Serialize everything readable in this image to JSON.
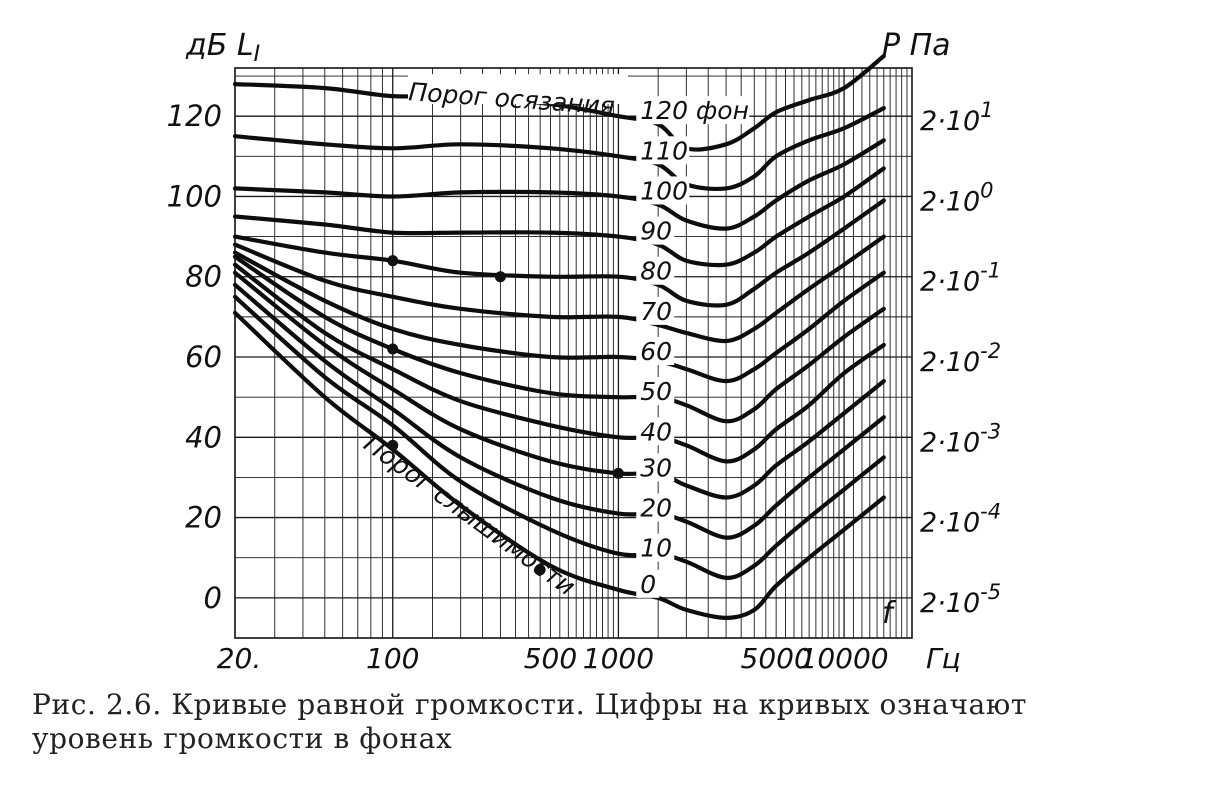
{
  "chart_data": {
    "type": "line",
    "xlabel": "f",
    "x_unit": "Гц",
    "ylabel_left": "дБ L",
    "ylabel_left_sub": "I",
    "ylabel_right": "P  Па",
    "x_scale": "log",
    "xlim": [
      20,
      20000
    ],
    "ylim": [
      -10,
      132
    ],
    "grid": true,
    "x_tick_labels": [
      {
        "value": 20,
        "label": "20."
      },
      {
        "value": 100,
        "label": "100"
      },
      {
        "value": 500,
        "label": "500"
      },
      {
        "value": 1000,
        "label": "1000"
      },
      {
        "value": 5000,
        "label": "5000"
      },
      {
        "value": 10000,
        "label": "10000"
      }
    ],
    "y_tick_labels": [
      {
        "value": 120,
        "label": "120"
      },
      {
        "value": 100,
        "label": "100"
      },
      {
        "value": 80,
        "label": "80"
      },
      {
        "value": 60,
        "label": "60"
      },
      {
        "value": 40,
        "label": "40"
      },
      {
        "value": 20,
        "label": "20"
      },
      {
        "value": 0,
        "label": "0"
      }
    ],
    "pressure_tick_labels": [
      {
        "level": 120,
        "base": "2·10",
        "exp": "1"
      },
      {
        "level": 100,
        "base": "2·10",
        "exp": "0"
      },
      {
        "level": 80,
        "base": "2·10",
        "exp": "-1"
      },
      {
        "level": 60,
        "base": "2·10",
        "exp": "-2"
      },
      {
        "level": 40,
        "base": "2·10",
        "exp": "-3"
      },
      {
        "level": 20,
        "base": "2·10",
        "exp": "-4"
      },
      {
        "level": 0,
        "base": "2·10",
        "exp": "-5"
      }
    ],
    "series": [
      {
        "name": "120 фон",
        "x": [
          20,
          50,
          100,
          200,
          500,
          1000,
          1500,
          2000,
          3000,
          4000,
          5000,
          7000,
          10000,
          15000
        ],
        "y": [
          128,
          127,
          125,
          125,
          123,
          120,
          118,
          112,
          113,
          117,
          121,
          124,
          127,
          135
        ]
      },
      {
        "name": "110",
        "x": [
          20,
          50,
          100,
          200,
          500,
          1000,
          1500,
          2000,
          3000,
          4000,
          5000,
          7000,
          10000,
          15000
        ],
        "y": [
          115,
          113,
          112,
          113,
          112,
          110,
          108,
          103,
          102,
          105,
          110,
          114,
          117,
          122
        ]
      },
      {
        "name": "100",
        "x": [
          20,
          50,
          100,
          200,
          500,
          1000,
          1500,
          2000,
          3000,
          4000,
          5000,
          7000,
          10000,
          15000
        ],
        "y": [
          102,
          101,
          100,
          101,
          101,
          100,
          98,
          94,
          92,
          95,
          99,
          104,
          108,
          114
        ]
      },
      {
        "name": "90",
        "x": [
          20,
          50,
          100,
          200,
          500,
          1000,
          1500,
          2000,
          3000,
          4000,
          5000,
          7000,
          10000,
          15000
        ],
        "y": [
          95,
          93,
          91,
          91,
          91,
          90,
          88,
          84,
          83,
          86,
          90,
          95,
          100,
          107
        ]
      },
      {
        "name": "80",
        "x": [
          20,
          50,
          100,
          200,
          500,
          1000,
          1500,
          2000,
          3000,
          4000,
          5000,
          7000,
          10000,
          15000
        ],
        "y": [
          90,
          86,
          84,
          81,
          80,
          80,
          78,
          74,
          73,
          77,
          81,
          86,
          92,
          99
        ]
      },
      {
        "name": "70",
        "x": [
          20,
          50,
          100,
          200,
          500,
          1000,
          1500,
          2000,
          3000,
          4000,
          5000,
          7000,
          10000,
          15000
        ],
        "y": [
          88,
          79,
          75,
          72,
          70,
          70,
          68,
          66,
          64,
          67,
          71,
          77,
          83,
          90
        ]
      },
      {
        "name": "60",
        "x": [
          20,
          50,
          100,
          200,
          500,
          1000,
          1500,
          2000,
          3000,
          4000,
          5000,
          7000,
          10000,
          15000
        ],
        "y": [
          86,
          74,
          67,
          63,
          60,
          60,
          59,
          57,
          54,
          57,
          61,
          67,
          74,
          81
        ]
      },
      {
        "name": "50",
        "x": [
          20,
          50,
          100,
          200,
          500,
          1000,
          1500,
          2000,
          3000,
          4000,
          5000,
          7000,
          10000,
          15000
        ],
        "y": [
          85,
          70,
          62,
          56,
          51,
          50,
          50,
          48,
          44,
          47,
          52,
          58,
          65,
          72
        ]
      },
      {
        "name": "40",
        "x": [
          20,
          50,
          100,
          200,
          500,
          1000,
          1500,
          2000,
          3000,
          4000,
          5000,
          7000,
          10000,
          15000
        ],
        "y": [
          83,
          66,
          57,
          49,
          43,
          40,
          40,
          38,
          34,
          37,
          42,
          48,
          56,
          63
        ]
      },
      {
        "name": "30",
        "x": [
          20,
          50,
          100,
          200,
          500,
          1000,
          1500,
          2000,
          3000,
          4000,
          5000,
          7000,
          10000,
          15000
        ],
        "y": [
          81,
          63,
          52,
          42,
          34,
          31,
          31,
          28,
          25,
          28,
          33,
          39,
          46,
          54
        ]
      },
      {
        "name": "20",
        "x": [
          20,
          50,
          100,
          200,
          500,
          1000,
          1500,
          2000,
          3000,
          4000,
          5000,
          7000,
          10000,
          15000
        ],
        "y": [
          78,
          59,
          47,
          35,
          25,
          21,
          21,
          19,
          15,
          18,
          23,
          30,
          37,
          45
        ]
      },
      {
        "name": "10",
        "x": [
          20,
          50,
          100,
          200,
          500,
          1000,
          1500,
          2000,
          3000,
          4000,
          5000,
          7000,
          10000,
          15000
        ],
        "y": [
          75,
          55,
          43,
          29,
          17,
          11,
          11,
          9,
          5,
          8,
          13,
          20,
          27,
          35
        ]
      },
      {
        "name": "0",
        "x": [
          20,
          50,
          100,
          200,
          500,
          1000,
          1500,
          2000,
          3000,
          4000,
          5000,
          7000,
          10000,
          15000
        ],
        "y": [
          71,
          50,
          37,
          23,
          8,
          2,
          0,
          -3,
          -5,
          -3,
          3,
          10,
          17,
          25
        ]
      }
    ],
    "markers": [
      {
        "x": 100,
        "y": 84
      },
      {
        "x": 300,
        "y": 80
      },
      {
        "x": 100,
        "y": 62
      },
      {
        "x": 100,
        "y": 38
      },
      {
        "x": 450,
        "y": 7
      },
      {
        "x": 1000,
        "y": 31
      }
    ],
    "annotations": {
      "top_curve_label": "Порог осязания",
      "bottom_curve_label": "Порог слышимости"
    }
  },
  "caption": {
    "line1": "Рис. 2.6. Кривые равной громкости. Цифры на кривых означают",
    "line2": "уровень громкости в фонах"
  }
}
